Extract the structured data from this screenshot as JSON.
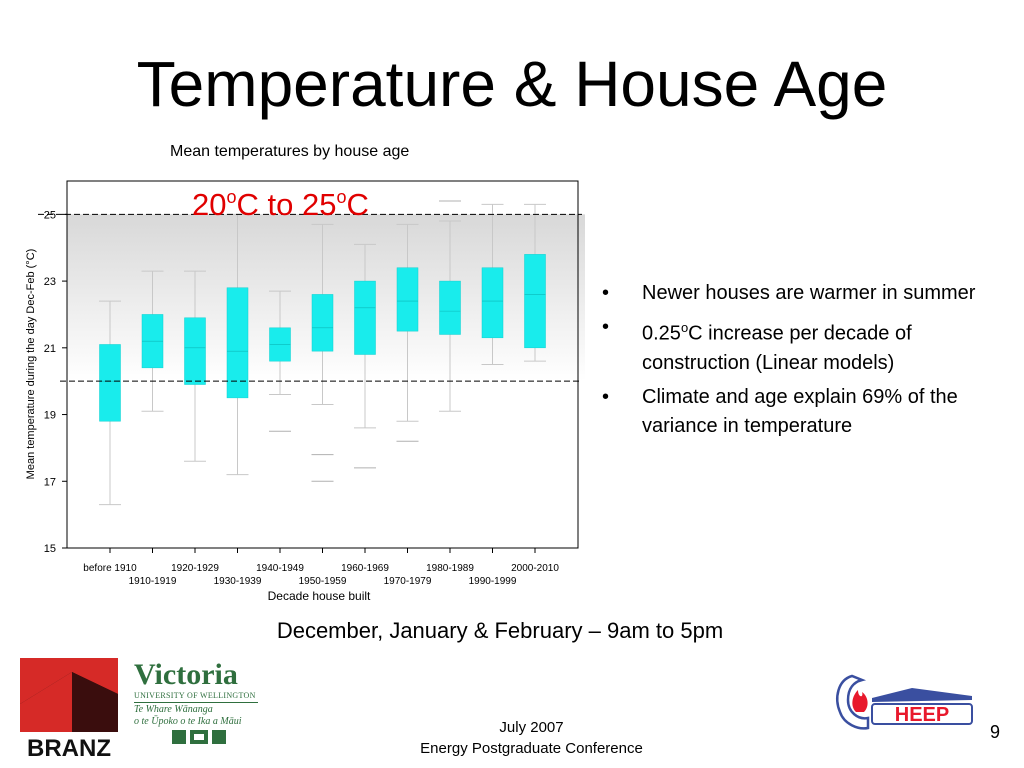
{
  "slide": {
    "title": "Temperature & House Age",
    "chart_title": "Mean temperatures by house age",
    "bullets": [
      {
        "parts": [
          "Newer houses are warmer in summer"
        ]
      },
      {
        "parts": [
          "0.25",
          "o",
          "C increase per decade of construction (Linear models)"
        ]
      },
      {
        "parts": [
          "Climate and age explain 69% of the variance in temperature"
        ]
      }
    ],
    "caption": "December, January & February – 9am to 5pm",
    "footer": {
      "date": "July 2007",
      "conference": "Energy Postgraduate Conference"
    },
    "page_number": "9"
  },
  "logos": {
    "branz": {
      "text": "BRANZ",
      "icon": "branz-logo"
    },
    "victoria": {
      "name": "Victoria",
      "univ": "UNIVERSITY OF WELLINGTON",
      "maori_1": "Te Whare Wānanga",
      "maori_2": "o te Ūpoko o te Ika a Māui",
      "icon": "victoria-crest-icon"
    },
    "heep": {
      "text": "HEEP",
      "icon": "heep-logo"
    }
  },
  "colors": {
    "box_fill": "#19ecec",
    "annotation": "#e00000",
    "band": "#d8d8d8",
    "heep_red": "#e8192c",
    "heep_blue": "#3a4fa0",
    "branz_red": "#d62a27"
  },
  "chart_data": {
    "type": "boxplot",
    "title": "Mean temperatures by house age",
    "xlabel": "Decade house built",
    "ylabel": "Mean temperature during the day Dec-Feb (°C)",
    "ylim": [
      15,
      26
    ],
    "yticks": [
      15,
      17,
      19,
      21,
      23,
      25
    ],
    "reference_lines": [
      20,
      25
    ],
    "annotation": {
      "parts": [
        "20",
        "o",
        "C to 25",
        "o",
        "C"
      ]
    },
    "categories": [
      "before 1910",
      "1910-1919",
      "1920-1929",
      "1930-1939",
      "1940-1949",
      "1950-1959",
      "1960-1969",
      "1970-1979",
      "1980-1989",
      "1990-1999",
      "2000-2010"
    ],
    "boxes": [
      {
        "q1": 18.8,
        "median": 20.0,
        "q3": 21.1,
        "whisker_low": 16.3,
        "whisker_high": 22.4,
        "outliers": []
      },
      {
        "q1": 20.4,
        "median": 21.2,
        "q3": 22.0,
        "whisker_low": 19.1,
        "whisker_high": 23.3,
        "outliers": []
      },
      {
        "q1": 19.9,
        "median": 21.0,
        "q3": 21.9,
        "whisker_low": 17.6,
        "whisker_high": 23.3,
        "outliers": []
      },
      {
        "q1": 19.5,
        "median": 20.9,
        "q3": 22.8,
        "whisker_low": 17.2,
        "whisker_high": 25.0,
        "outliers": []
      },
      {
        "q1": 20.6,
        "median": 21.1,
        "q3": 21.6,
        "whisker_low": 19.6,
        "whisker_high": 22.7,
        "outliers": [
          18.5
        ]
      },
      {
        "q1": 20.9,
        "median": 21.6,
        "q3": 22.6,
        "whisker_low": 19.3,
        "whisker_high": 24.7,
        "outliers": [
          17.8,
          17.0
        ]
      },
      {
        "q1": 20.8,
        "median": 22.2,
        "q3": 23.0,
        "whisker_low": 18.6,
        "whisker_high": 24.1,
        "outliers": [
          17.4
        ]
      },
      {
        "q1": 21.5,
        "median": 22.4,
        "q3": 23.4,
        "whisker_low": 18.8,
        "whisker_high": 24.7,
        "outliers": [
          18.2
        ]
      },
      {
        "q1": 21.4,
        "median": 22.1,
        "q3": 23.0,
        "whisker_low": 19.1,
        "whisker_high": 24.8,
        "outliers": [
          25.4
        ]
      },
      {
        "q1": 21.3,
        "median": 22.4,
        "q3": 23.4,
        "whisker_low": 20.5,
        "whisker_high": 25.3,
        "outliers": []
      },
      {
        "q1": 21.0,
        "median": 22.6,
        "q3": 23.8,
        "whisker_low": 20.6,
        "whisker_high": 25.3,
        "outliers": []
      }
    ]
  }
}
